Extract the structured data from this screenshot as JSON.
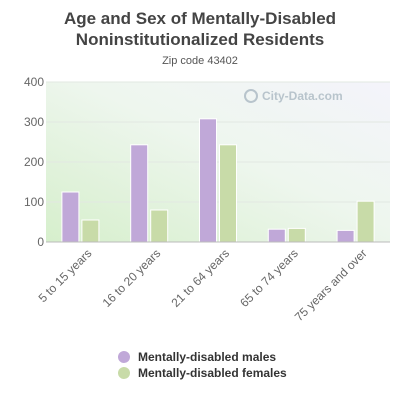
{
  "chart_data": {
    "type": "bar",
    "title_lines": [
      "Age and Sex of Mentally-Disabled",
      "Noninstitutionalized Residents"
    ],
    "subtitle": "Zip code 43402",
    "watermark": "City-Data.com",
    "categories": [
      "5 to 15 years",
      "16 to 20 years",
      "21 to 64 years",
      "65 to 74 years",
      "75 years and over"
    ],
    "series": [
      {
        "name": "Mentally-disabled males",
        "values": [
          125,
          243,
          308,
          32,
          29
        ],
        "color": "#c0a8d8"
      },
      {
        "name": "Mentally-disabled females",
        "values": [
          55,
          80,
          243,
          34,
          102
        ],
        "color": "#c8dba8"
      }
    ],
    "yticks": [
      0,
      100,
      200,
      300,
      400
    ],
    "ylim": [
      0,
      400
    ],
    "grid": true,
    "legend_position": "bottom"
  }
}
